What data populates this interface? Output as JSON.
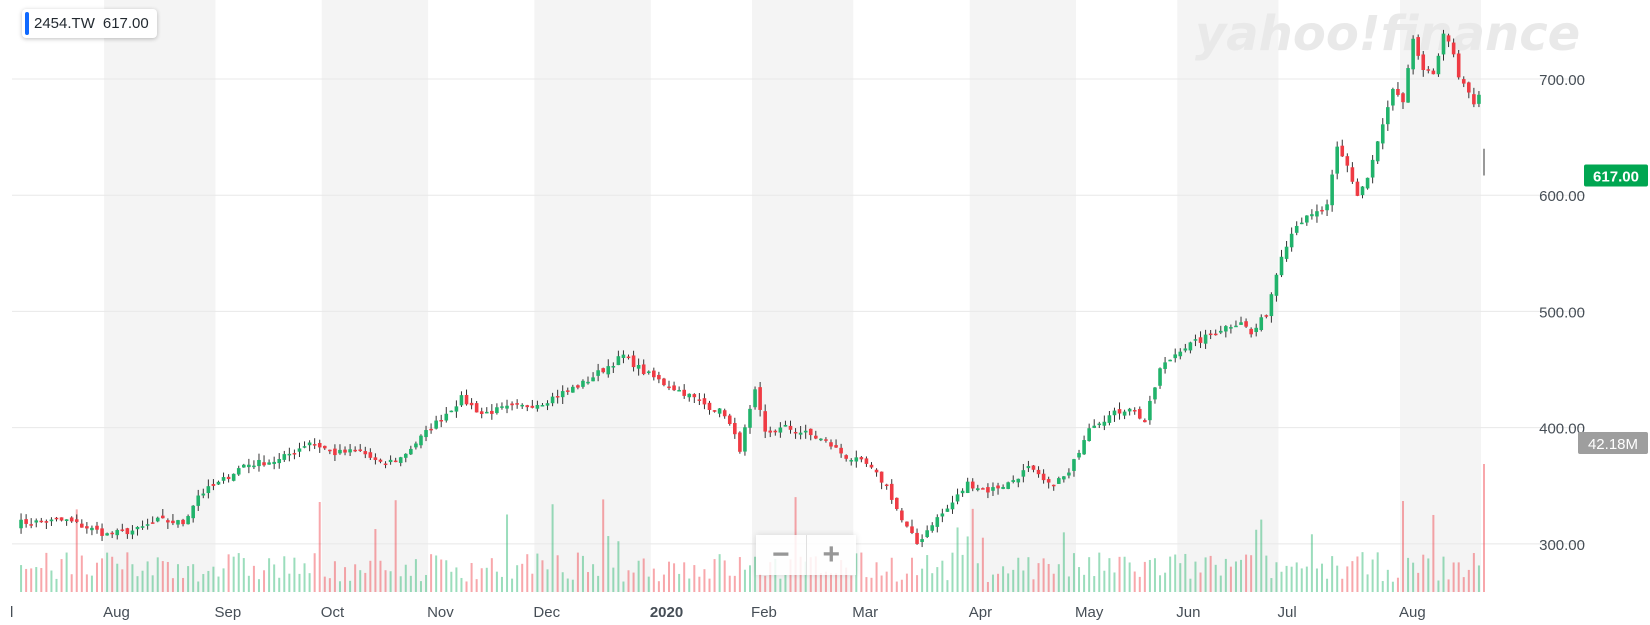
{
  "badge": {
    "symbol": "2454.TW",
    "value": "617.00"
  },
  "watermark": "yahoo!finance",
  "zoom": {
    "out_label": "−",
    "in_label": "+"
  },
  "colors": {
    "up": "#21b36b",
    "down": "#ef3b44",
    "price_tag": "#00a651",
    "volume_tag": "#9e9e9e",
    "band": "#f4f4f4"
  },
  "chart_data": {
    "type": "candlestick",
    "symbol": "2454.TW",
    "last_price": 617.0,
    "last_price_label": "617.00",
    "last_volume_label": "42.18M",
    "y_ticks": [
      "300.00",
      "400.00",
      "500.00",
      "600.00",
      "700.00"
    ],
    "y_tick_values": [
      300,
      400,
      500,
      600,
      700
    ],
    "ylim": [
      262,
      768
    ],
    "x_ticks": [
      "Jul",
      "Aug",
      "Sep",
      "Oct",
      "Nov",
      "Dec",
      "2020",
      "Feb",
      "Mar",
      "Apr",
      "May",
      "Jun",
      "Jul",
      "Aug"
    ],
    "x_label_edge": "l",
    "month_index": [
      0,
      18,
      40,
      61,
      82,
      103,
      126,
      146,
      166,
      189,
      210,
      230,
      250,
      274
    ],
    "n_days": 290,
    "close_anchors": [
      [
        0,
        318
      ],
      [
        10,
        320
      ],
      [
        18,
        308
      ],
      [
        24,
        312
      ],
      [
        28,
        320
      ],
      [
        33,
        318
      ],
      [
        36,
        342
      ],
      [
        40,
        352
      ],
      [
        45,
        368
      ],
      [
        52,
        372
      ],
      [
        58,
        388
      ],
      [
        63,
        378
      ],
      [
        68,
        380
      ],
      [
        72,
        368
      ],
      [
        76,
        374
      ],
      [
        82,
        400
      ],
      [
        88,
        425
      ],
      [
        92,
        412
      ],
      [
        96,
        416
      ],
      [
        100,
        418
      ],
      [
        104,
        422
      ],
      [
        108,
        430
      ],
      [
        112,
        438
      ],
      [
        116,
        450
      ],
      [
        120,
        462
      ],
      [
        124,
        448
      ],
      [
        128,
        438
      ],
      [
        132,
        430
      ],
      [
        136,
        420
      ],
      [
        140,
        412
      ],
      [
        143,
        382
      ],
      [
        146,
        430
      ],
      [
        148,
        395
      ],
      [
        152,
        400
      ],
      [
        156,
        395
      ],
      [
        160,
        388
      ],
      [
        164,
        375
      ],
      [
        168,
        368
      ],
      [
        172,
        350
      ],
      [
        175,
        320
      ],
      [
        178,
        300
      ],
      [
        181,
        318
      ],
      [
        184,
        330
      ],
      [
        188,
        352
      ],
      [
        192,
        346
      ],
      [
        196,
        352
      ],
      [
        200,
        365
      ],
      [
        204,
        350
      ],
      [
        208,
        360
      ],
      [
        212,
        402
      ],
      [
        216,
        410
      ],
      [
        220,
        418
      ],
      [
        223,
        405
      ],
      [
        226,
        450
      ],
      [
        230,
        468
      ],
      [
        234,
        475
      ],
      [
        238,
        485
      ],
      [
        242,
        492
      ],
      [
        244,
        480
      ],
      [
        247,
        498
      ],
      [
        250,
        550
      ],
      [
        253,
        576
      ],
      [
        256,
        582
      ],
      [
        259,
        590
      ],
      [
        261,
        640
      ],
      [
        263,
        625
      ],
      [
        265,
        600
      ],
      [
        267,
        615
      ],
      [
        270,
        660
      ],
      [
        272,
        690
      ],
      [
        274,
        678
      ],
      [
        276,
        735
      ],
      [
        278,
        705
      ],
      [
        280,
        705
      ],
      [
        282,
        740
      ],
      [
        284,
        720
      ],
      [
        285,
        700
      ],
      [
        288,
        680
      ],
      [
        289,
        688
      ],
      [
        290,
        617
      ]
    ],
    "volume_ylim_max": 42.18
  }
}
